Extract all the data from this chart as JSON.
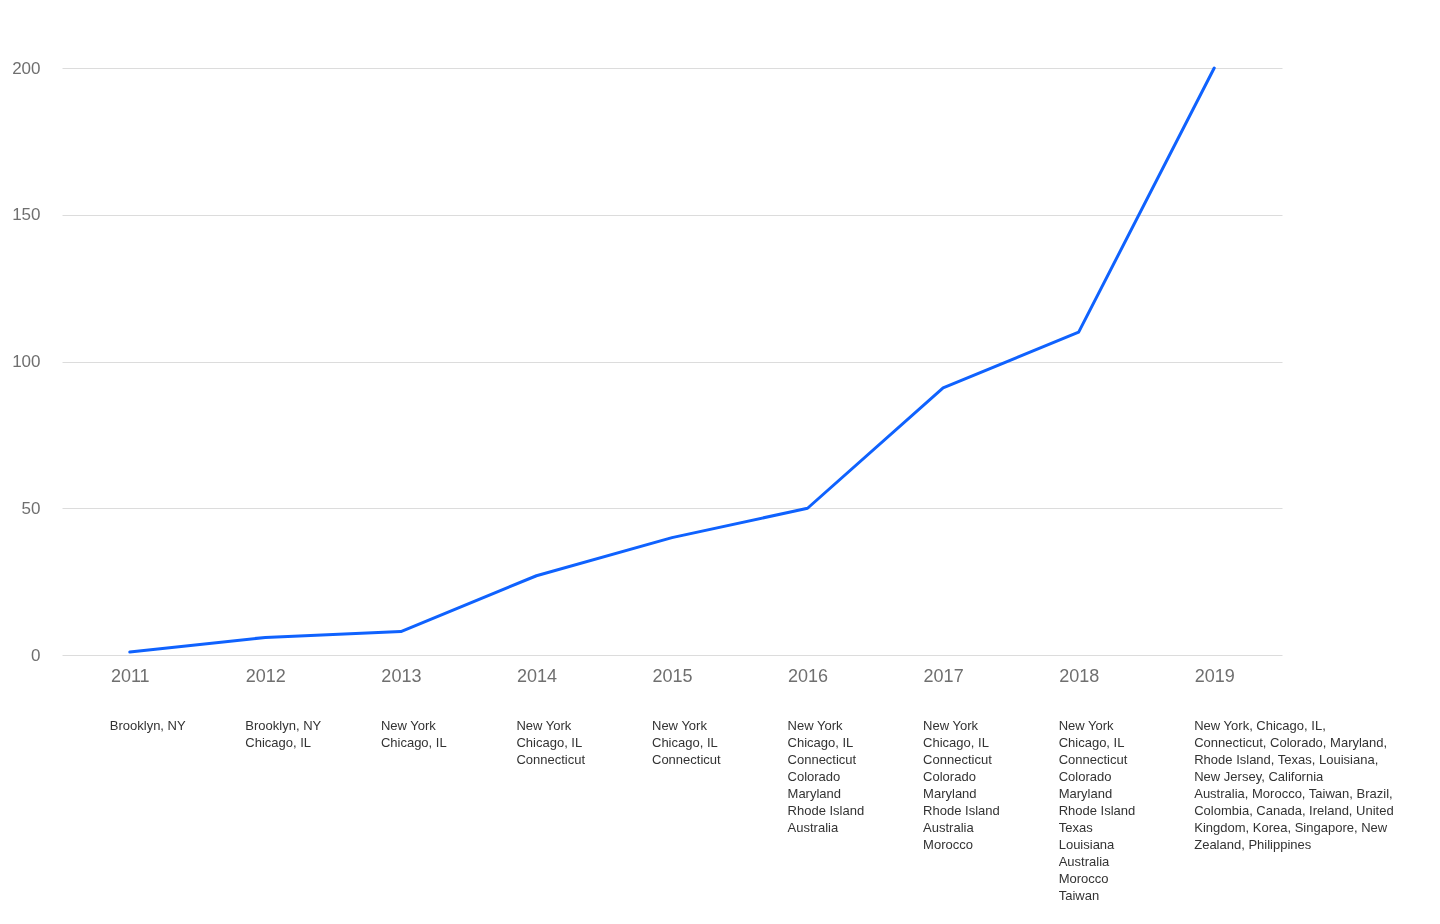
{
  "chart_data": {
    "type": "line",
    "categories": [
      "2011",
      "2012",
      "2013",
      "2014",
      "2015",
      "2016",
      "2017",
      "2018",
      "2019"
    ],
    "series": [
      {
        "color": "#0f62fe",
        "values": [
          1,
          6,
          8,
          27,
          40,
          50,
          91,
          110,
          200
        ]
      }
    ],
    "ylim": [
      0,
      200
    ],
    "yticks": [
      0,
      50,
      100,
      150,
      200
    ],
    "grid": "y",
    "line_style": "solid",
    "annotations": [
      "Brooklyn, NY",
      "Brooklyn, NY\nChicago, IL",
      "New York\nChicago, IL",
      "New York\nChicago, IL\nConnecticut",
      "New York\nChicago, IL\nConnecticut",
      "New York\nChicago, IL\nConnecticut\nColorado\nMaryland\nRhode Island\nAustralia",
      "New York\nChicago, IL\nConnecticut\nColorado\nMaryland\nRhode Island\nAustralia\nMorocco",
      "New York\nChicago, IL\nConnecticut\nColorado\nMaryland\nRhode Island\nTexas\nLouisiana\nAustralia\nMorocco\nTaiwan",
      "New York, Chicago, IL,\nConnecticut, Colorado, Maryland,\nRhode Island, Texas, Louisiana,\nNew Jersey, California\nAustralia, Morocco, Taiwan, Brazil,\nColombia, Canada, Ireland, United\nKingdom, Korea, Singapore, New\nZealand, Philippines"
    ]
  }
}
